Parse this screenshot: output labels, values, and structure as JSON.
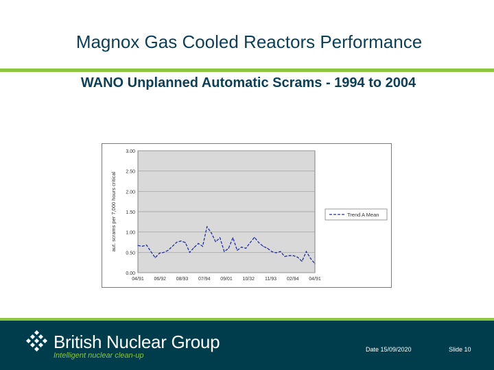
{
  "slide": {
    "title": "Magnox Gas Cooled Reactors Performance",
    "subtitle": "WANO Unplanned Automatic Scrams - 1994 to 2004"
  },
  "colors": {
    "brand_green": "#8dc63f",
    "brand_dark": "#003d4c",
    "title_text": "#0b3f57",
    "plot_bg": "#d9d9d9"
  },
  "chart_data": {
    "type": "line",
    "ylabel": "aut. scrams per 7,000 hours critical",
    "ylim": [
      0,
      3
    ],
    "yticks": [
      "3.00",
      "2.50",
      "2.00",
      "1.50",
      "1.00",
      "0.50",
      "0.00"
    ],
    "xtick_labels": [
      "04/91",
      "06/92",
      "08/93",
      "07/94",
      "09/01",
      "10/32",
      "11/93",
      "02/94",
      "04/91"
    ],
    "grid": "horizontal",
    "legend_position": "right",
    "series": [
      {
        "name": "Trend A Mean",
        "style": "dashed",
        "color": "#1f2f9e",
        "values": [
          0.67,
          0.65,
          0.68,
          0.52,
          0.37,
          0.48,
          0.5,
          0.55,
          0.65,
          0.75,
          0.78,
          0.74,
          0.5,
          0.62,
          0.72,
          0.65,
          1.13,
          0.98,
          0.76,
          0.86,
          0.52,
          0.6,
          0.86,
          0.55,
          0.63,
          0.6,
          0.74,
          0.87,
          0.74,
          0.65,
          0.6,
          0.52,
          0.49,
          0.52,
          0.4,
          0.42,
          0.42,
          0.38,
          0.28,
          0.52,
          0.35,
          0.22
        ]
      }
    ]
  },
  "footer": {
    "brand": "British Nuclear Group",
    "tagline": "Intelligent nuclear clean-up",
    "date": "Date 15/09/2020",
    "slide": "Slide  10",
    "logo_icon": "diamond-dots-logo-icon"
  }
}
